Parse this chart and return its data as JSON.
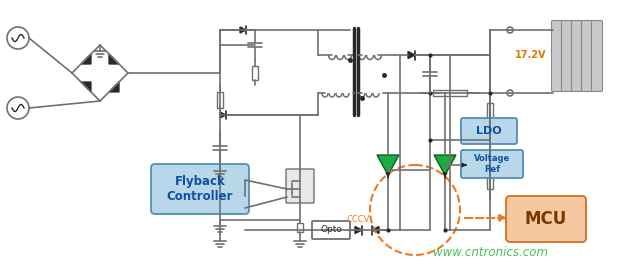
{
  "bg_color": "#ffffff",
  "lc": "#707070",
  "dc": "#282828",
  "gc": "#1faa44",
  "blue_fc": "#b8d8ea",
  "blue_ec": "#5090b8",
  "orange_fc": "#f5c8a0",
  "orange_ec": "#d07020",
  "orange_dash": "#f07820",
  "volt_color": "#e07800",
  "volt_label": "17.2V",
  "ldo_label": "LDO",
  "vref_label": "Voltage\nRef",
  "mcu_label": "MCU",
  "fly_label": "Flyback\nController",
  "opto_label": "Opto",
  "cccv_label": "CCCV",
  "web_label": "www.cntronics.com",
  "web_color": "#33bb44"
}
